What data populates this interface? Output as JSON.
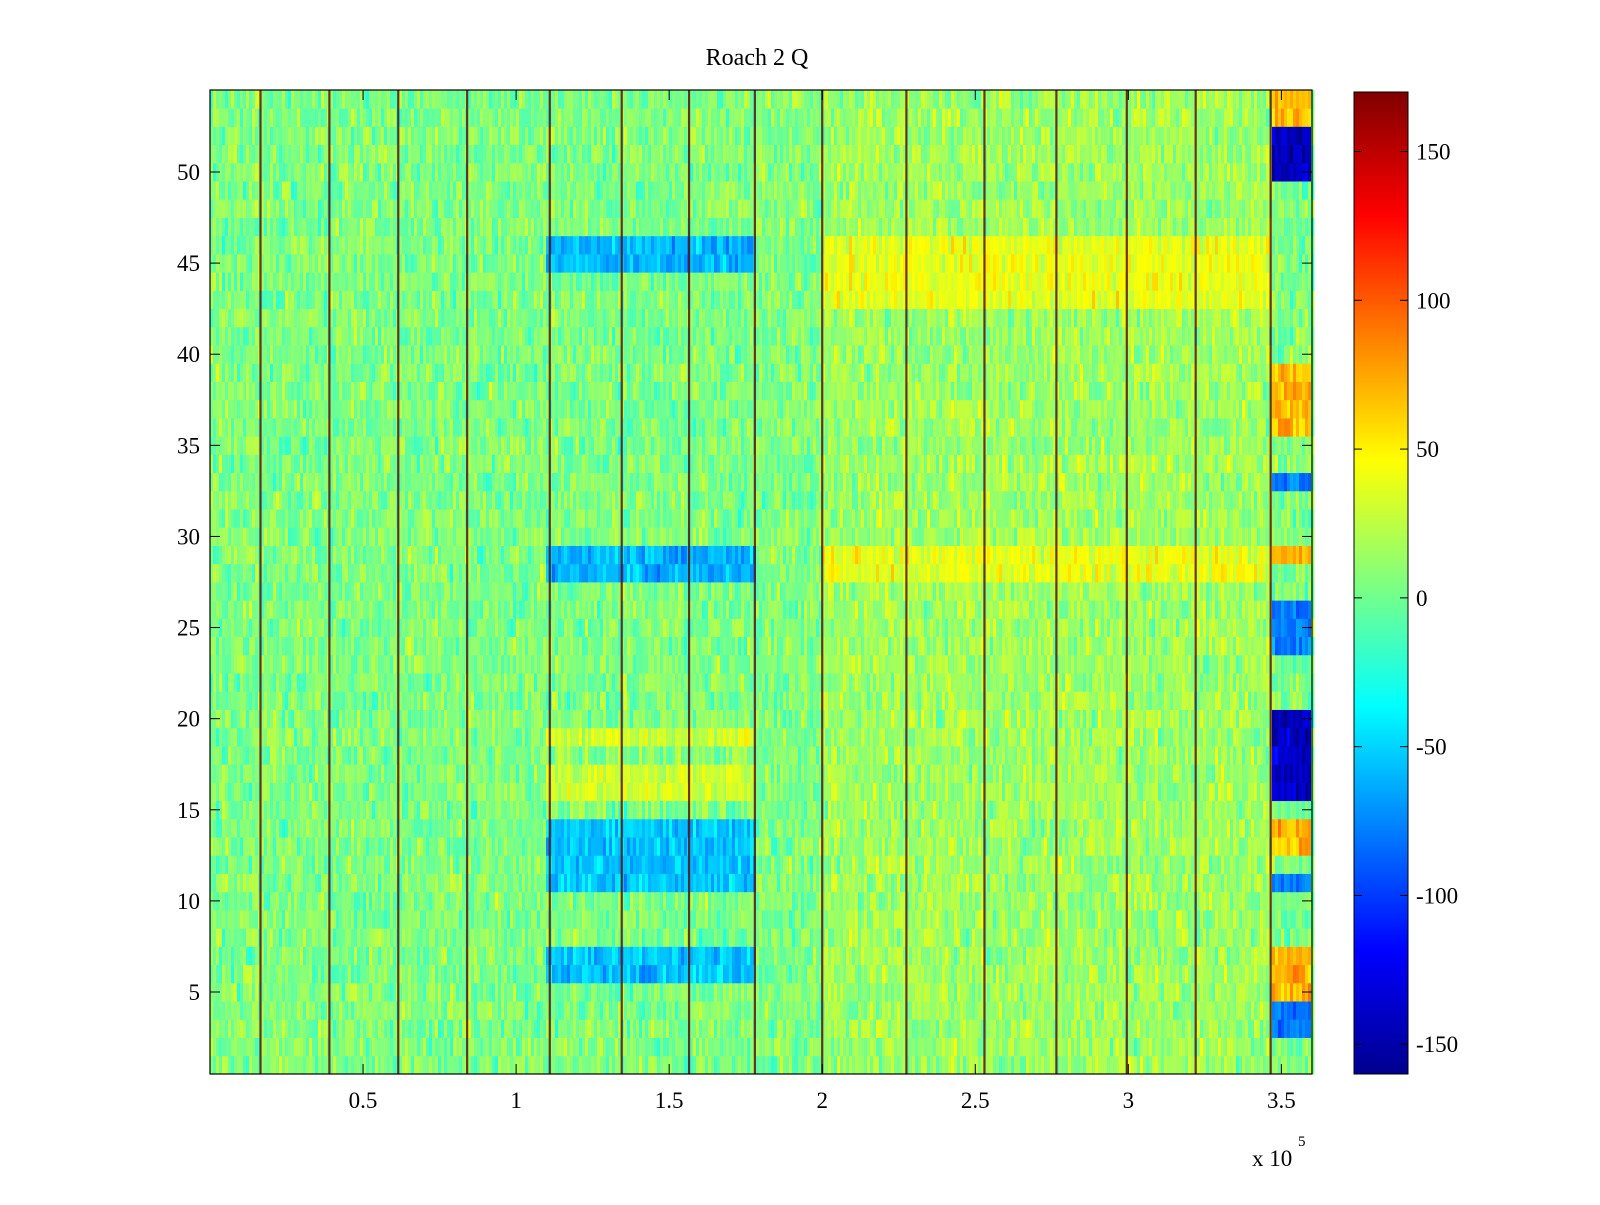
{
  "chart_data": {
    "type": "heatmap",
    "title": "Roach 2 Q",
    "xlabel": "",
    "ylabel": "",
    "x_range": [
      0,
      360000
    ],
    "y_range": [
      0.5,
      54.5
    ],
    "x_ticks": [
      {
        "value": 50000,
        "label": "0.5"
      },
      {
        "value": 100000,
        "label": "1"
      },
      {
        "value": 150000,
        "label": "1.5"
      },
      {
        "value": 200000,
        "label": "2"
      },
      {
        "value": 250000,
        "label": "2.5"
      },
      {
        "value": 300000,
        "label": "3"
      },
      {
        "value": 350000,
        "label": "3.5"
      }
    ],
    "x_multiplier": {
      "base": "x 10",
      "exponent": "5"
    },
    "y_ticks": [
      {
        "value": 5,
        "label": "5"
      },
      {
        "value": 10,
        "label": "10"
      },
      {
        "value": 15,
        "label": "15"
      },
      {
        "value": 20,
        "label": "20"
      },
      {
        "value": 25,
        "label": "25"
      },
      {
        "value": 30,
        "label": "30"
      },
      {
        "value": 35,
        "label": "35"
      },
      {
        "value": 40,
        "label": "40"
      },
      {
        "value": 45,
        "label": "45"
      },
      {
        "value": 50,
        "label": "50"
      }
    ],
    "colorbar": {
      "range": [
        -160,
        170
      ],
      "colormap": "jet",
      "ticks": [
        {
          "value": 150,
          "label": "150"
        },
        {
          "value": 100,
          "label": "100"
        },
        {
          "value": 50,
          "label": "50"
        },
        {
          "value": 0,
          "label": "0"
        },
        {
          "value": -50,
          "label": "-50"
        },
        {
          "value": -100,
          "label": "-100"
        },
        {
          "value": -150,
          "label": "-150"
        }
      ]
    },
    "rows": 54,
    "background_value": 5,
    "vertical_boundaries_x": [
      16500,
      39000,
      61500,
      84000,
      111000,
      134500,
      156500,
      178000,
      200000,
      227500,
      253000,
      276500,
      299500,
      322000,
      346500
    ],
    "row_features": [
      {
        "x_range": [
          110000,
          178000
        ],
        "rows": [
          [
            6,
            7
          ],
          [
            11,
            14
          ]
        ],
        "value": -55
      },
      {
        "x_range": [
          110000,
          178000
        ],
        "rows": [
          [
            16,
            17
          ],
          [
            19,
            19
          ]
        ],
        "value": 30
      },
      {
        "x_range": [
          110000,
          178000
        ],
        "rows": [
          [
            28,
            29
          ],
          [
            45,
            46
          ]
        ],
        "value": -60
      },
      {
        "x_range": [
          200000,
          346500
        ],
        "rows": [
          [
            28,
            29
          ],
          [
            43,
            46
          ]
        ],
        "value": 40
      },
      {
        "x_range": [
          346500,
          360000
        ],
        "rows": [
          [
            3,
            4
          ],
          [
            11,
            11
          ],
          [
            24,
            26
          ],
          [
            33,
            33
          ]
        ],
        "value": -80
      },
      {
        "x_range": [
          346500,
          360000
        ],
        "rows": [
          [
            16,
            20
          ],
          [
            50,
            52
          ]
        ],
        "value": -140
      },
      {
        "x_range": [
          346500,
          360000
        ],
        "rows": [
          [
            5,
            7
          ],
          [
            13,
            14
          ],
          [
            29,
            29
          ],
          [
            36,
            39
          ],
          [
            53,
            54
          ]
        ],
        "value": 70
      }
    ]
  }
}
